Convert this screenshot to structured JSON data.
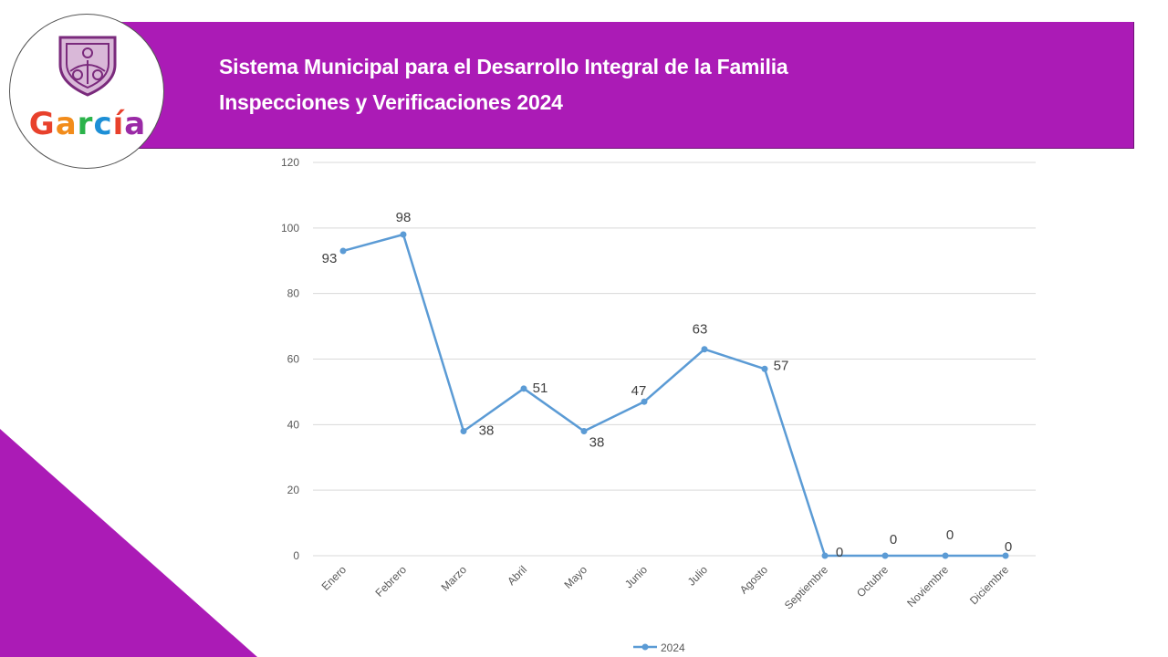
{
  "header": {
    "line1": "Sistema Municipal para el Desarrollo Integral de la Familia",
    "line2": "Inspecciones y Verificaciones 2024",
    "color": "#ab1bb6"
  },
  "logo": {
    "letters": [
      "G",
      "a",
      "r",
      "c",
      "í",
      "a"
    ],
    "letter_colors": [
      "#e8412c",
      "#f28c1b",
      "#2bb34a",
      "#1d8fd6",
      "#e8412c",
      "#9a2aa6"
    ],
    "icon": "shield-crest-icon"
  },
  "chart_data": {
    "type": "line",
    "categories": [
      "Enero",
      "Febrero",
      "Marzo",
      "Abril",
      "Mayo",
      "Junio",
      "Julio",
      "Agosto",
      "Septiembre",
      "Octubre",
      "Noviembre",
      "Diciembre"
    ],
    "series": [
      {
        "name": "2024",
        "values": [
          93,
          98,
          38,
          51,
          38,
          47,
          63,
          57,
          0,
          0,
          0,
          0
        ],
        "color": "#5b9bd5"
      }
    ],
    "yticks": [
      0,
      20,
      40,
      60,
      80,
      100,
      120
    ],
    "ylim": [
      0,
      120
    ],
    "grid": true,
    "legend_position": "bottom",
    "title": "",
    "xlabel": "",
    "ylabel": ""
  }
}
